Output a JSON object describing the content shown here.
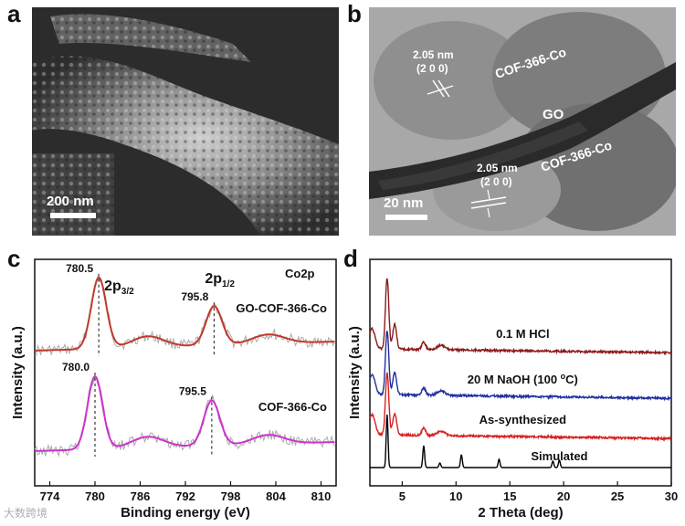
{
  "panels": {
    "a": {
      "letter": "a",
      "scale_bar": "200 nm"
    },
    "b": {
      "letter": "b",
      "scale_bar": "20 nm",
      "labels": {
        "cof_top": "COF-366-Co",
        "go": "GO",
        "cof_bottom": "COF-366-Co",
        "spacing_value": "2.05 nm",
        "spacing_hkl": "(2 0 0)"
      }
    },
    "c": {
      "letter": "c"
    },
    "d": {
      "letter": "d"
    }
  },
  "watermark": "大数跨境",
  "chart_data": [
    {
      "type": "line",
      "panel": "c",
      "xlabel": "Binding energy (eV)",
      "ylabel": "Intensity (a.u.)",
      "xlim": [
        772,
        812
      ],
      "xticks": [
        774,
        780,
        786,
        792,
        798,
        804,
        810
      ],
      "tick_labels": [
        "774",
        "780",
        "786",
        "792",
        "798",
        "804",
        "810"
      ],
      "annotation": "Co2p",
      "peak_labels": {
        "p32": "2p",
        "p32_sub": "3/2",
        "p12": "2p",
        "p12_sub": "1/2"
      },
      "series": [
        {
          "name": "GO-COF-366-Co",
          "color": "#c0392b",
          "peaks": [
            {
              "x": 780.5,
              "label": "780.5"
            },
            {
              "x": 795.8,
              "label": "795.8"
            }
          ]
        },
        {
          "name": "COF-366-Co",
          "color": "#cc33cc",
          "peaks": [
            {
              "x": 780.0,
              "label": "780.0"
            },
            {
              "x": 795.5,
              "label": "795.5"
            }
          ]
        }
      ],
      "raw_color": "#aaaaaa"
    },
    {
      "type": "line",
      "panel": "d",
      "xlabel": "2 Theta (deg)",
      "ylabel": "Intensity (a.u.)",
      "xlim": [
        2,
        30
      ],
      "xticks": [
        5,
        10,
        15,
        20,
        25,
        30
      ],
      "tick_labels": [
        "5",
        "10",
        "15",
        "20",
        "25",
        "30"
      ],
      "series": [
        {
          "name": "0.1 M HCl",
          "color": "#8b1a1a"
        },
        {
          "name": "20 M NaOH (100 ",
          "name_sup": "o",
          "name_end": "C)",
          "color": "#1f2f9e"
        },
        {
          "name": "As-synthesized",
          "color": "#d62020"
        },
        {
          "name": "Simulated",
          "color": "#000000"
        }
      ],
      "peak_positions": [
        3.6,
        4.2,
        7.0,
        8.5,
        10.5,
        12.0,
        14.0,
        19.0,
        19.5
      ]
    }
  ]
}
